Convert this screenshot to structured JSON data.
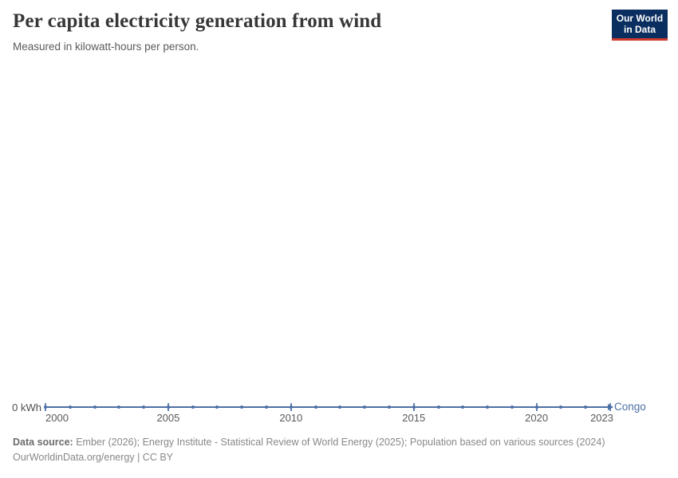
{
  "header": {
    "title": "Per capita electricity generation from wind",
    "subtitle": "Measured in kilowatt-hours per person.",
    "logo": {
      "line1": "Our World",
      "line2": "in Data",
      "bg_color": "#0a2e5f",
      "accent_color": "#cf3a2b"
    }
  },
  "chart_data": {
    "type": "line",
    "title": "Per capita electricity generation from wind",
    "subtitle": "Measured in kilowatt-hours per person.",
    "unit": "kilowatt-hours per person",
    "x": [
      2000,
      2001,
      2002,
      2003,
      2004,
      2005,
      2006,
      2007,
      2008,
      2009,
      2010,
      2011,
      2012,
      2013,
      2014,
      2015,
      2016,
      2017,
      2018,
      2019,
      2020,
      2021,
      2022,
      2023
    ],
    "series": [
      {
        "name": "Congo",
        "color": "#4c6fa5",
        "values": [
          0,
          0,
          0,
          0,
          0,
          0,
          0,
          0,
          0,
          0,
          0,
          0,
          0,
          0,
          0,
          0,
          0,
          0,
          0,
          0,
          0,
          0,
          0,
          0
        ]
      }
    ],
    "x_ticks": [
      2000,
      2005,
      2010,
      2015,
      2020,
      2023
    ],
    "x_tick_labels": [
      "2000",
      "2005",
      "2010",
      "2015",
      "2020",
      "2023"
    ],
    "y_zero_label": "0 kWh",
    "y_ticks": [
      "0 kWh"
    ],
    "xlim": [
      2000,
      2023
    ],
    "ylim": [
      0,
      0
    ],
    "grid": false,
    "legend_position": "line-end"
  },
  "footer": {
    "datasource_label": "Data source:",
    "datasource_text": " Ember (2026); Energy Institute - Statistical Review of World Energy (2025); Population based on various sources (2024)",
    "line2": "OurWorldinData.org/energy | CC BY"
  }
}
